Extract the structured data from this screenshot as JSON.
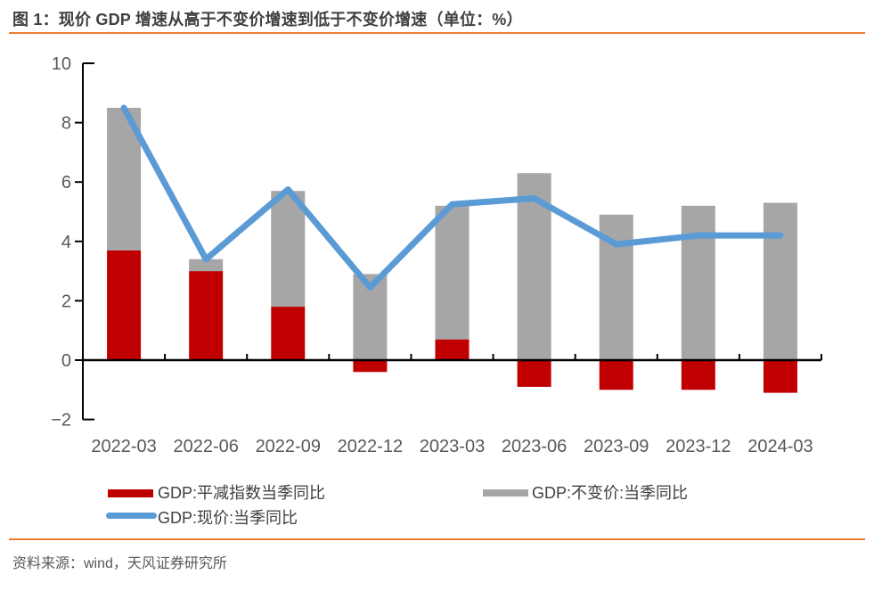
{
  "title": "图 1：现价 GDP 增速从高于不变价增速到低于不变价增速（单位：%）",
  "source": "资料来源：wind，天风证券研究所",
  "colors": {
    "deflator_bar": "#C00000",
    "real_bar": "#A6A6A6",
    "nominal_line": "#5B9BD5",
    "accent_rule": "#ED7D31",
    "axis": "#000000",
    "tick_label": "#595959",
    "title_text": "#404040"
  },
  "legend": {
    "items": [
      {
        "label": "GDP:平减指数当季同比",
        "swatch": "bar",
        "color": "#C00000"
      },
      {
        "label": "GDP:不变价:当季同比",
        "swatch": "bar",
        "color": "#A6A6A6"
      },
      {
        "label": "GDP:现价:当季同比",
        "swatch": "line",
        "color": "#5B9BD5"
      }
    ]
  },
  "chart_data": {
    "type": "combo_stacked_bar_line",
    "categories": [
      "2022-03",
      "2022-06",
      "2022-09",
      "2022-12",
      "2023-03",
      "2023-06",
      "2023-09",
      "2023-12",
      "2024-03"
    ],
    "series": [
      {
        "name": "GDP:平减指数当季同比",
        "type": "bar_stack_base",
        "color": "#C00000",
        "values": [
          3.7,
          3.0,
          1.8,
          -0.4,
          0.7,
          -0.9,
          -1.0,
          -1.0,
          -1.1
        ]
      },
      {
        "name": "GDP:不变价:当季同比",
        "type": "bar_stack_top",
        "color": "#A6A6A6",
        "values": [
          4.8,
          0.4,
          3.9,
          2.9,
          4.5,
          6.3,
          4.9,
          5.2,
          5.3
        ]
      },
      {
        "name": "GDP:现价:当季同比",
        "type": "line",
        "color": "#5B9BD5",
        "values": [
          8.5,
          3.4,
          5.75,
          2.45,
          5.25,
          5.45,
          3.9,
          4.2,
          4.2
        ]
      }
    ],
    "ylim": [
      -2,
      10
    ],
    "yticks": [
      -2,
      0,
      2,
      4,
      6,
      8,
      10
    ],
    "grid": false,
    "legend_position": "bottom"
  }
}
